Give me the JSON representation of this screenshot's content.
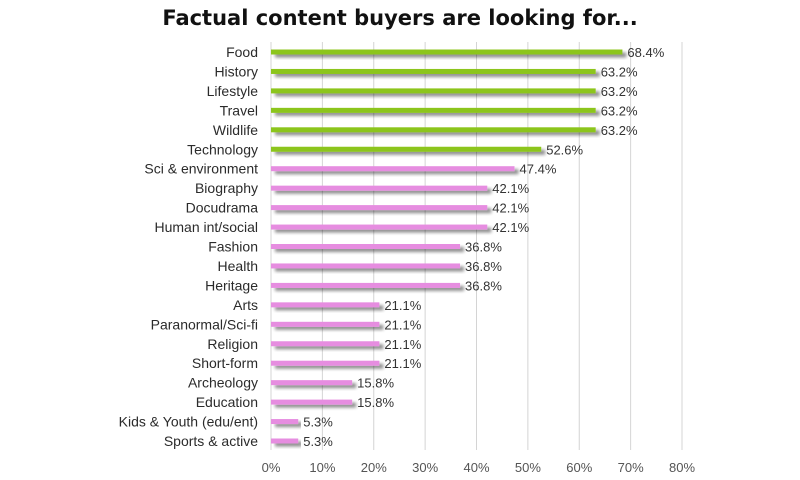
{
  "chart_data": {
    "type": "bar",
    "orientation": "horizontal",
    "title": "Factual content buyers are looking for...",
    "xlabel": "",
    "ylabel": "",
    "xlim": [
      0,
      80
    ],
    "x_ticks": [
      "0%",
      "10%",
      "20%",
      "30%",
      "40%",
      "50%",
      "60%",
      "70%",
      "80%"
    ],
    "grid": true,
    "categories": [
      "Food",
      "History",
      "Lifestyle",
      "Travel",
      "Wildlife",
      "Technology",
      "Sci & environment",
      "Biography",
      "Docudrama",
      "Human int/social",
      "Fashion",
      "Health",
      "Heritage",
      "Arts",
      "Paranormal/Sci-fi",
      "Religion",
      "Short-form",
      "Archeology",
      "Education",
      "Kids & Youth (edu/ent)",
      "Sports & active"
    ],
    "values": [
      68.4,
      63.2,
      63.2,
      63.2,
      63.2,
      52.6,
      47.4,
      42.1,
      42.1,
      42.1,
      36.8,
      36.8,
      36.8,
      21.1,
      21.1,
      21.1,
      21.1,
      15.8,
      15.8,
      5.3,
      5.3
    ],
    "value_labels": [
      "68.4%",
      "63.2%",
      "63.2%",
      "63.2%",
      "63.2%",
      "52.6%",
      "47.4%",
      "42.1%",
      "42.1%",
      "42.1%",
      "36.8%",
      "36.8%",
      "36.8%",
      "21.1%",
      "21.1%",
      "21.1%",
      "21.1%",
      "15.8%",
      "15.8%",
      "5.3%",
      "5.3%"
    ],
    "colors": {
      "green": "#8cc51a",
      "pink": "#e68de0",
      "grid": "#d4d4d4"
    },
    "green_count": 6
  }
}
